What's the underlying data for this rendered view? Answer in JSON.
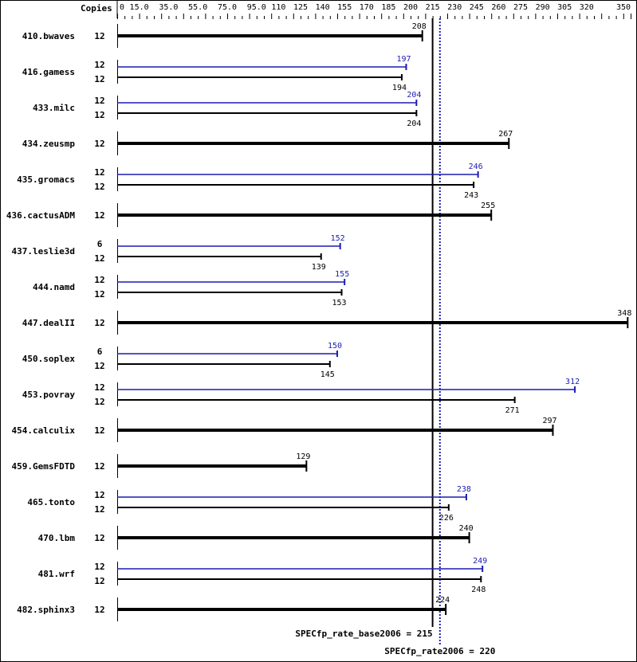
{
  "chart_data": {
    "type": "bar",
    "orientation": "horizontal",
    "copies_header": "Copies",
    "xlim": [
      0,
      350
    ],
    "tick_labels": [
      "0",
      "15.0",
      "35.0",
      "55.0",
      "75.0",
      "95.0",
      "110",
      "125",
      "140",
      "155",
      "170",
      "185",
      "200",
      "215",
      "230",
      "245",
      "260",
      "275",
      "290",
      "305",
      "320",
      "350"
    ],
    "tick_values": [
      0,
      15,
      35,
      55,
      75,
      95,
      110,
      125,
      140,
      155,
      170,
      185,
      200,
      215,
      230,
      245,
      260,
      275,
      290,
      305,
      320,
      350
    ],
    "colors": {
      "base": "#000000",
      "peak": "#1c1cb4"
    },
    "benchmarks": [
      {
        "name": "410.bwaves",
        "base_copies": "12",
        "base": 208
      },
      {
        "name": "416.gamess",
        "peak_copies": "12",
        "peak": 197,
        "base_copies": "12",
        "base": 194
      },
      {
        "name": "433.milc",
        "peak_copies": "12",
        "peak": 204,
        "base_copies": "12",
        "base": 204
      },
      {
        "name": "434.zeusmp",
        "base_copies": "12",
        "base": 267
      },
      {
        "name": "435.gromacs",
        "peak_copies": "12",
        "peak": 246,
        "base_copies": "12",
        "base": 243
      },
      {
        "name": "436.cactusADM",
        "base_copies": "12",
        "base": 255
      },
      {
        "name": "437.leslie3d",
        "peak_copies": "6",
        "peak": 152,
        "base_copies": "12",
        "base": 139
      },
      {
        "name": "444.namd",
        "peak_copies": "12",
        "peak": 155,
        "base_copies": "12",
        "base": 153
      },
      {
        "name": "447.dealII",
        "base_copies": "12",
        "base": 348
      },
      {
        "name": "450.soplex",
        "peak_copies": "6",
        "peak": 150,
        "base_copies": "12",
        "base": 145
      },
      {
        "name": "453.povray",
        "peak_copies": "12",
        "peak": 312,
        "base_copies": "12",
        "base": 271
      },
      {
        "name": "454.calculix",
        "base_copies": "12",
        "base": 297
      },
      {
        "name": "459.GemsFDTD",
        "base_copies": "12",
        "base": 129
      },
      {
        "name": "465.tonto",
        "peak_copies": "12",
        "peak": 238,
        "base_copies": "12",
        "base": 226
      },
      {
        "name": "470.lbm",
        "base_copies": "12",
        "base": 240
      },
      {
        "name": "481.wrf",
        "peak_copies": "12",
        "peak": 249,
        "base_copies": "12",
        "base": 248
      },
      {
        "name": "482.sphinx3",
        "base_copies": "12",
        "base": 224
      }
    ],
    "reference_lines": [
      {
        "label": "SPECfp_rate_base2006 = 215",
        "value": 215,
        "style": "solid",
        "color": "#000000"
      },
      {
        "label": "SPECfp_rate2006 = 220",
        "value": 220,
        "style": "dotted",
        "color": "#1c1cb4"
      }
    ]
  }
}
